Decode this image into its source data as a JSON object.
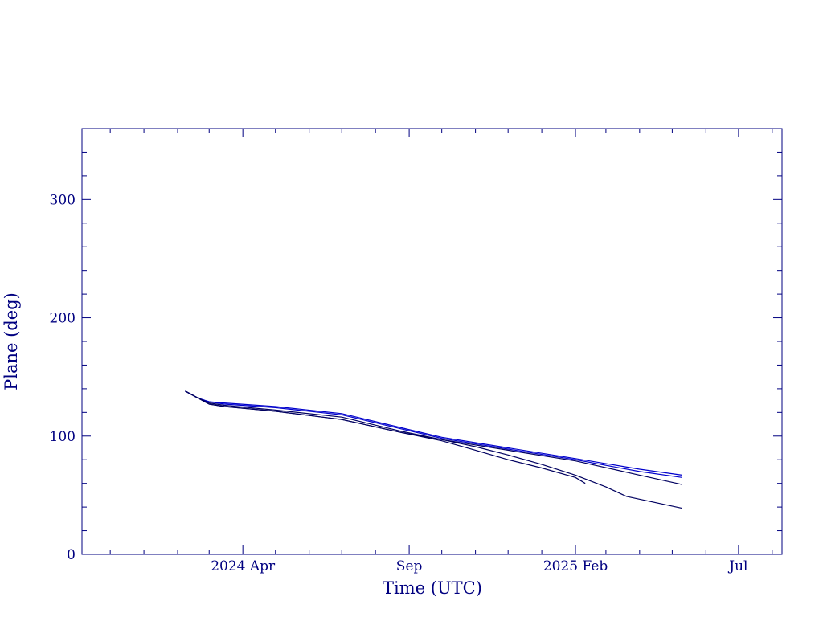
{
  "chart_data": {
    "type": "line",
    "xlabel": "Time (UTC)",
    "ylabel": "Plane (deg)",
    "xlim": [
      "2023-11-05",
      "2025-08-10"
    ],
    "ylim": [
      0,
      360
    ],
    "x_ticks": [
      {
        "date": "2024-04-01",
        "label": "2024 Apr"
      },
      {
        "date": "2024-09-01",
        "label": "Sep"
      },
      {
        "date": "2025-02-01",
        "label": "2025 Feb"
      },
      {
        "date": "2025-07-01",
        "label": "Jul"
      }
    ],
    "y_ticks": [
      0,
      100,
      200,
      300
    ],
    "grid": false,
    "colors": {
      "axis": "#000080",
      "line_dark": "#000060",
      "line_blue": "#0000cc"
    },
    "series": [
      {
        "color": "#0000cc",
        "x": [
          "2024-02-08",
          "2024-02-20",
          "2024-03-01",
          "2024-03-15",
          "2024-05-01",
          "2024-07-01",
          "2024-08-25",
          "2024-10-01",
          "2024-12-01",
          "2025-02-01",
          "2025-04-01",
          "2025-05-10"
        ],
        "y": [
          138,
          132,
          129,
          128,
          125,
          119,
          107,
          99,
          90,
          81,
          72,
          67
        ]
      },
      {
        "color": "#0000cc",
        "x": [
          "2024-02-08",
          "2024-02-20",
          "2024-03-01",
          "2024-03-15",
          "2024-05-01",
          "2024-07-01",
          "2024-08-25",
          "2024-10-01",
          "2024-12-01",
          "2025-02-01",
          "2025-04-01",
          "2025-05-10"
        ],
        "y": [
          138,
          132,
          129,
          127,
          124,
          118,
          106,
          98,
          89,
          80,
          70,
          65
        ]
      },
      {
        "color": "#000060",
        "x": [
          "2024-02-08",
          "2024-02-20",
          "2024-03-01",
          "2024-03-15",
          "2024-05-01",
          "2024-07-01",
          "2024-08-25",
          "2024-10-01",
          "2024-12-01",
          "2025-02-01",
          "2025-04-01",
          "2025-05-10"
        ],
        "y": [
          138,
          132,
          128,
          126,
          122,
          116,
          104,
          97,
          88,
          79,
          67,
          59
        ]
      },
      {
        "color": "#000060",
        "x": [
          "2024-02-08",
          "2024-02-20",
          "2024-03-01",
          "2024-03-15",
          "2024-05-01",
          "2024-07-01",
          "2024-08-25",
          "2024-10-01",
          "2024-11-01",
          "2024-12-01",
          "2025-01-01",
          "2025-02-01",
          "2025-02-10"
        ],
        "y": [
          138,
          132,
          127,
          125,
          121,
          114,
          103,
          96,
          88,
          80,
          73,
          65,
          60
        ]
      },
      {
        "color": "#000060",
        "x": [
          "2024-02-08",
          "2024-02-20",
          "2024-03-01",
          "2024-03-15",
          "2024-05-01",
          "2024-07-01",
          "2024-08-25",
          "2024-10-01",
          "2024-11-01",
          "2024-12-01",
          "2025-01-01",
          "2025-02-01",
          "2025-03-01",
          "2025-03-20",
          "2025-05-10"
        ],
        "y": [
          138,
          132,
          127,
          125,
          121,
          114,
          103,
          97,
          91,
          84,
          76,
          67,
          57,
          49,
          39
        ]
      }
    ]
  }
}
